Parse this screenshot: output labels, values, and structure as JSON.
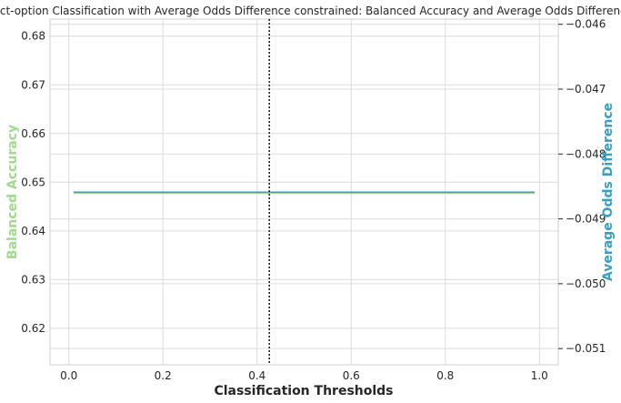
{
  "chart_data": {
    "type": "line",
    "title": "Reject-option Classification with Average Odds Difference constrained: Balanced Accuracy and Average Odds Difference",
    "xlabel": "Classification Thresholds",
    "ylabel_left": "Balanced Accuracy",
    "ylabel_right": "Average Odds Difference",
    "xlim": [
      -0.04,
      1.04
    ],
    "ylim_left": [
      0.6125,
      0.6835
    ],
    "ylim_right": [
      -0.05125,
      -0.04592
    ],
    "x_ticks": [
      {
        "value": 0.0,
        "label": "0.0"
      },
      {
        "value": 0.2,
        "label": "0.2"
      },
      {
        "value": 0.4,
        "label": "0.4"
      },
      {
        "value": 0.6,
        "label": "0.6"
      },
      {
        "value": 0.8,
        "label": "0.8"
      },
      {
        "value": 1.0,
        "label": "1.0"
      }
    ],
    "y_left_ticks": [
      {
        "value": 0.62,
        "label": "0.62"
      },
      {
        "value": 0.63,
        "label": "0.63"
      },
      {
        "value": 0.64,
        "label": "0.64"
      },
      {
        "value": 0.65,
        "label": "0.65"
      },
      {
        "value": 0.66,
        "label": "0.66"
      },
      {
        "value": 0.67,
        "label": "0.67"
      },
      {
        "value": 0.68,
        "label": "0.68"
      }
    ],
    "y_right_ticks": [
      {
        "value": -0.051,
        "label": "−0.051"
      },
      {
        "value": -0.05,
        "label": "−0.050"
      },
      {
        "value": -0.049,
        "label": "−0.049"
      },
      {
        "value": -0.048,
        "label": "−0.048"
      },
      {
        "value": -0.047,
        "label": "−0.047"
      },
      {
        "value": -0.046,
        "label": "−0.046"
      }
    ],
    "series": [
      {
        "axis": "left",
        "color": "#9edc8c",
        "x": [
          0.01,
          0.99
        ],
        "y": [
          0.6478,
          0.6478
        ]
      },
      {
        "axis": "right",
        "color": "#3a9ec2",
        "x": [
          0.01,
          0.99
        ],
        "y": [
          -0.04859,
          -0.04859
        ]
      }
    ],
    "vline": {
      "x": 0.426,
      "style": "dotted",
      "color": "#262626"
    },
    "grid": true,
    "colors": {
      "left_axis_label": "#9edc8c",
      "right_axis_label": "#3a9ec2",
      "grid": "#dcdcdc",
      "frame": "#cfcfcf"
    }
  }
}
